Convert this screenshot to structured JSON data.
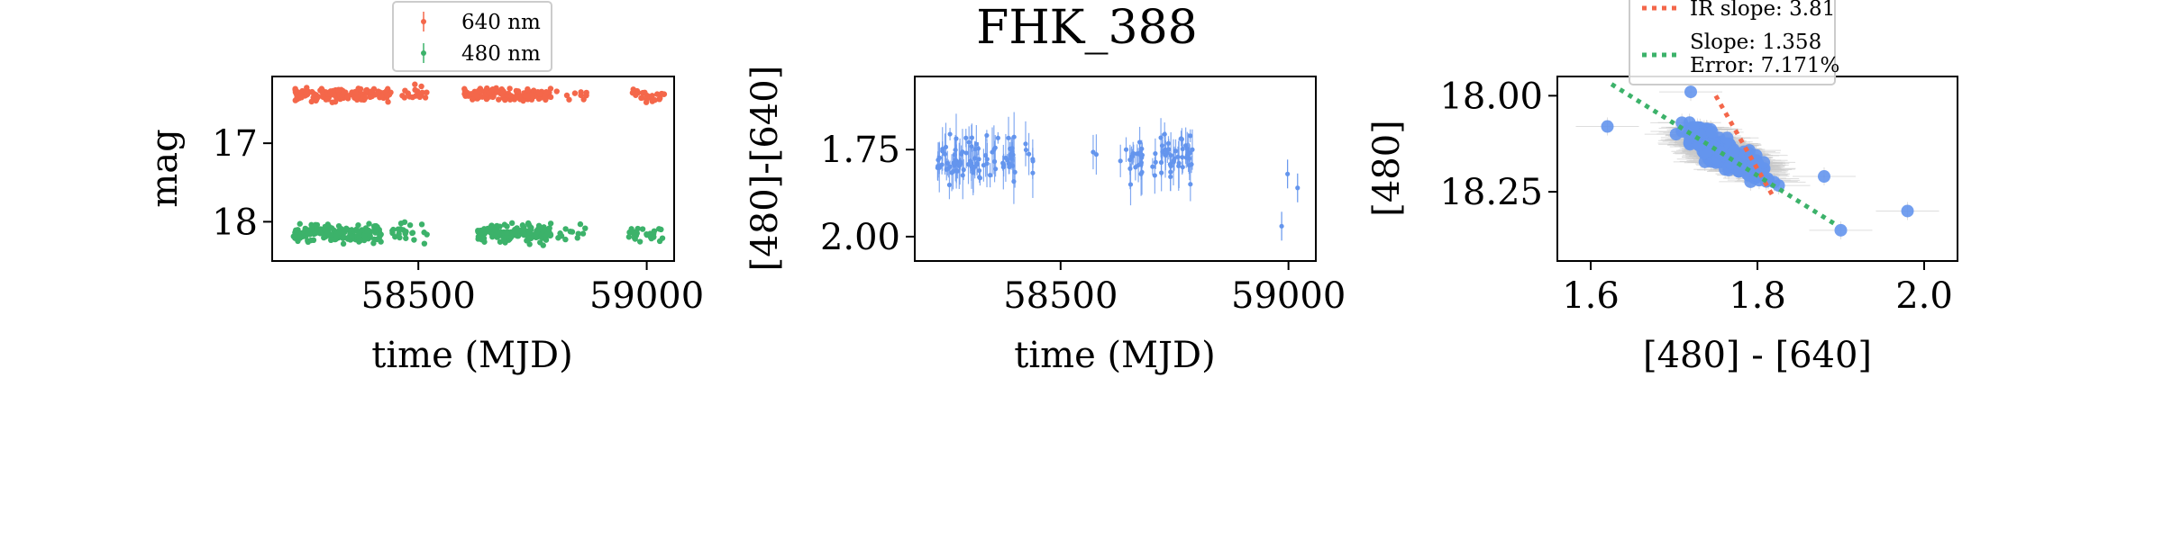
{
  "figure": {
    "title": "FHK_388"
  },
  "chart_data": [
    {
      "type": "scatter",
      "xlabel": "time (MJD)",
      "ylabel": "mag",
      "xlim": [
        58180,
        59060
      ],
      "ylim": [
        18.5,
        16.15
      ],
      "y_inverted": true,
      "xticks": [
        58500,
        59000
      ],
      "xtick_labels": [
        "58500",
        "59000"
      ],
      "yticks": [
        17,
        18
      ],
      "ytick_labels": [
        "17",
        "18"
      ],
      "legend": {
        "placement": "top-center",
        "entries": [
          {
            "label": "640 nm",
            "color": "#f4674a"
          },
          {
            "label": "480 nm",
            "color": "#3cb26a"
          }
        ]
      },
      "series": [
        {
          "name": "640 nm",
          "color": "#f4674a",
          "center": 16.38,
          "spread": 0.09,
          "segments": [
            [
              58230,
              58440,
              160
            ],
            [
              58460,
              58520,
              18
            ],
            [
              58600,
              58790,
              150
            ],
            [
              58800,
              58870,
              10
            ],
            [
              58960,
              59040,
              25
            ]
          ]
        },
        {
          "name": "480 nm",
          "color": "#3cb26a",
          "center": 18.15,
          "spread": 0.12,
          "segments": [
            [
              58220,
              58420,
              180
            ],
            [
              58440,
              58520,
              22
            ],
            [
              58630,
              58790,
              150
            ],
            [
              58800,
              58870,
              12
            ],
            [
              58960,
              59040,
              28
            ]
          ]
        }
      ]
    },
    {
      "type": "scatter",
      "xlabel": "time (MJD)",
      "ylabel": "[480]-[640]",
      "xlim": [
        58180,
        59060
      ],
      "ylim": [
        2.07,
        1.54
      ],
      "y_inverted": true,
      "xticks": [
        58500,
        59000
      ],
      "xtick_labels": [
        "58500",
        "59000"
      ],
      "yticks": [
        1.75,
        2.0
      ],
      "ytick_labels": [
        "1.75",
        "2.00"
      ],
      "series": [
        {
          "name": "",
          "color": "#6495ed",
          "center": 1.78,
          "spread": 0.07,
          "segments": [
            [
              58230,
              58400,
              90
            ],
            [
              58420,
              58440,
              6
            ],
            [
              58570,
              58580,
              2
            ],
            [
              58630,
              58680,
              22
            ],
            [
              58700,
              58790,
              45
            ]
          ],
          "extra_points": [
            [
              58985,
              1.97
            ],
            [
              58998,
              1.82
            ],
            [
              59020,
              1.86
            ]
          ]
        }
      ]
    },
    {
      "type": "scatter",
      "xlabel": "[480] - [640]",
      "ylabel": "[480]",
      "xlim": [
        1.56,
        2.04
      ],
      "ylim": [
        18.43,
        17.95
      ],
      "y_inverted": true,
      "xticks": [
        1.6,
        1.8,
        2.0
      ],
      "xtick_labels": [
        "1.6",
        "1.8",
        "2.0"
      ],
      "yticks": [
        18.0,
        18.25
      ],
      "ytick_labels": [
        "18.00",
        "18.25"
      ],
      "cluster": {
        "color": "#6495ed",
        "center_x": 1.76,
        "center_y": 18.15,
        "count": 320
      },
      "extra_points": [
        [
          1.62,
          18.08
        ],
        [
          1.98,
          18.3
        ],
        [
          1.9,
          18.35
        ],
        [
          1.72,
          17.99
        ],
        [
          1.88,
          18.21
        ]
      ],
      "fit_lines": [
        {
          "label": "IR slope: 3.81",
          "color": "#f4674a",
          "slope": 3.81,
          "x0": 1.75,
          "x1": 1.82,
          "y0": 18.0
        },
        {
          "label": "Slope: 1.358",
          "sublabel": "Error: 7.171%",
          "color": "#3cb26a",
          "slope": 1.358,
          "x0": 1.625,
          "x1": 1.895,
          "y0": 17.97
        }
      ],
      "legend": {
        "placement": "top-center"
      }
    }
  ]
}
